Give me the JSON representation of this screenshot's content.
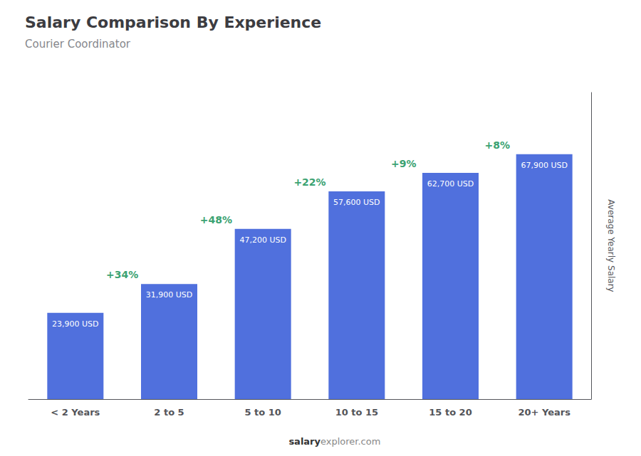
{
  "chart_data": {
    "type": "bar",
    "title": "Salary Comparison By Experience",
    "subtitle": "Courier Coordinator",
    "ylabel": "Average Yearly Salary",
    "categories": [
      "< 2 Years",
      "2 to 5",
      "5 to 10",
      "10 to 15",
      "15 to 20",
      "20+ Years"
    ],
    "values": [
      23900,
      31900,
      47200,
      57600,
      62700,
      67900
    ],
    "value_labels": [
      "23,900 USD",
      "31,900 USD",
      "47,200 USD",
      "57,600 USD",
      "62,700 USD",
      "67,900 USD"
    ],
    "data_labels": true,
    "annotations": [
      "+34%",
      "+48%",
      "+22%",
      "+9%",
      "+8%"
    ],
    "footer": [
      "salary",
      "explorer.com"
    ],
    "ylim": [
      0,
      85000
    ],
    "grid": false,
    "tick_labels": "x"
  }
}
